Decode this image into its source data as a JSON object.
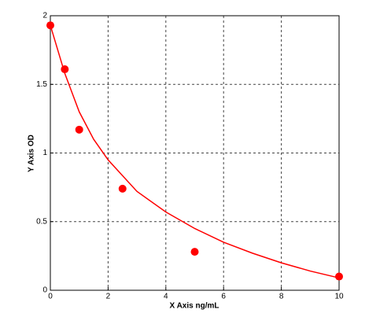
{
  "chart_data": {
    "type": "scatter",
    "x_label": "X Axis ng/mL",
    "y_label": "Y Axis OD",
    "x": [
      0,
      0.5,
      1,
      2.5,
      5,
      10
    ],
    "values": [
      1.93,
      1.61,
      1.17,
      0.74,
      0.28,
      0.1
    ],
    "color": "#ff0000",
    "curve": {
      "x": [
        0,
        0.5,
        1,
        1.5,
        2,
        3,
        4,
        5,
        6,
        7,
        8,
        9,
        10
      ],
      "values": [
        1.93,
        1.58,
        1.3,
        1.1,
        0.95,
        0.72,
        0.57,
        0.45,
        0.35,
        0.27,
        0.2,
        0.14,
        0.09
      ]
    },
    "xlim": [
      0,
      10
    ],
    "xticks": [
      0,
      2,
      4,
      6,
      8,
      10
    ],
    "ylim": [
      0,
      2
    ],
    "yticks": [
      0,
      0.5,
      1,
      1.5,
      2
    ],
    "grid": true
  }
}
